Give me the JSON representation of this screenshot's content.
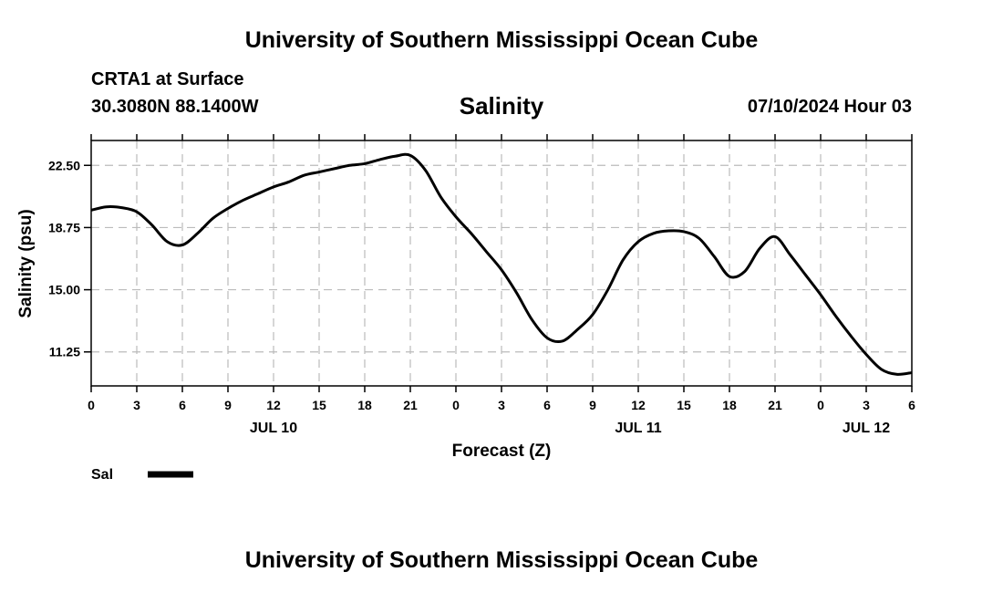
{
  "header": {
    "main_title": "University of Southern Mississippi Ocean Cube",
    "station": "CRTA1 at Surface",
    "coords": "30.3080N  88.1400W",
    "variable_title": "Salinity",
    "datetime": "07/10/2024 Hour 03"
  },
  "footer": {
    "main_title": "University of Southern Mississippi Ocean Cube"
  },
  "colors": {
    "line": "#000000",
    "grid": "#bbbbbb",
    "frame": "#000000"
  },
  "chart_data": {
    "type": "line",
    "title": "Salinity",
    "xlabel": "Forecast (Z)",
    "ylabel": "Salinity (psu)",
    "xlim": [
      0,
      54
    ],
    "ylim": [
      9.2,
      24.0
    ],
    "yticks": [
      11.25,
      15.0,
      18.75,
      22.5
    ],
    "ytick_labels": [
      "11.25",
      "15.00",
      "18.75",
      "22.50"
    ],
    "xticks": [
      0,
      3,
      6,
      9,
      12,
      15,
      18,
      21,
      24,
      27,
      30,
      33,
      36,
      39,
      42,
      45,
      48,
      51,
      54
    ],
    "xtick_labels": [
      "0",
      "3",
      "6",
      "9",
      "12",
      "15",
      "18",
      "21",
      "0",
      "3",
      "6",
      "9",
      "12",
      "15",
      "18",
      "21",
      "0",
      "3",
      "6"
    ],
    "date_labels": [
      {
        "label": "JUL 10",
        "hour": 12
      },
      {
        "label": "JUL 11",
        "hour": 36
      },
      {
        "label": "JUL 12",
        "hour": 51
      }
    ],
    "grid": true,
    "legend": {
      "position": "bottom-left",
      "entries": [
        {
          "label": "Sal"
        }
      ]
    },
    "series": [
      {
        "name": "Sal",
        "x": [
          0,
          1,
          2,
          3,
          4,
          5,
          6,
          7,
          8,
          9,
          10,
          11,
          12,
          13,
          14,
          15,
          16,
          17,
          18,
          19,
          20,
          21,
          22,
          23,
          24,
          25,
          26,
          27,
          28,
          29,
          30,
          31,
          32,
          33,
          34,
          35,
          36,
          37,
          38,
          39,
          40,
          41,
          42,
          43,
          44,
          45,
          46,
          47,
          48,
          49,
          50,
          51,
          52,
          53,
          54
        ],
        "values": [
          19.8,
          20.0,
          19.95,
          19.7,
          18.9,
          17.9,
          17.7,
          18.4,
          19.3,
          19.9,
          20.4,
          20.8,
          21.2,
          21.5,
          21.9,
          22.1,
          22.3,
          22.5,
          22.6,
          22.85,
          23.05,
          23.1,
          22.2,
          20.6,
          19.4,
          18.4,
          17.3,
          16.2,
          14.8,
          13.2,
          12.1,
          11.9,
          12.6,
          13.5,
          15.0,
          16.8,
          17.9,
          18.4,
          18.55,
          18.5,
          18.1,
          17.0,
          15.8,
          16.1,
          17.5,
          18.2,
          17.1,
          15.9,
          14.7,
          13.4,
          12.2,
          11.1,
          10.2,
          9.9,
          10.0
        ]
      }
    ]
  }
}
